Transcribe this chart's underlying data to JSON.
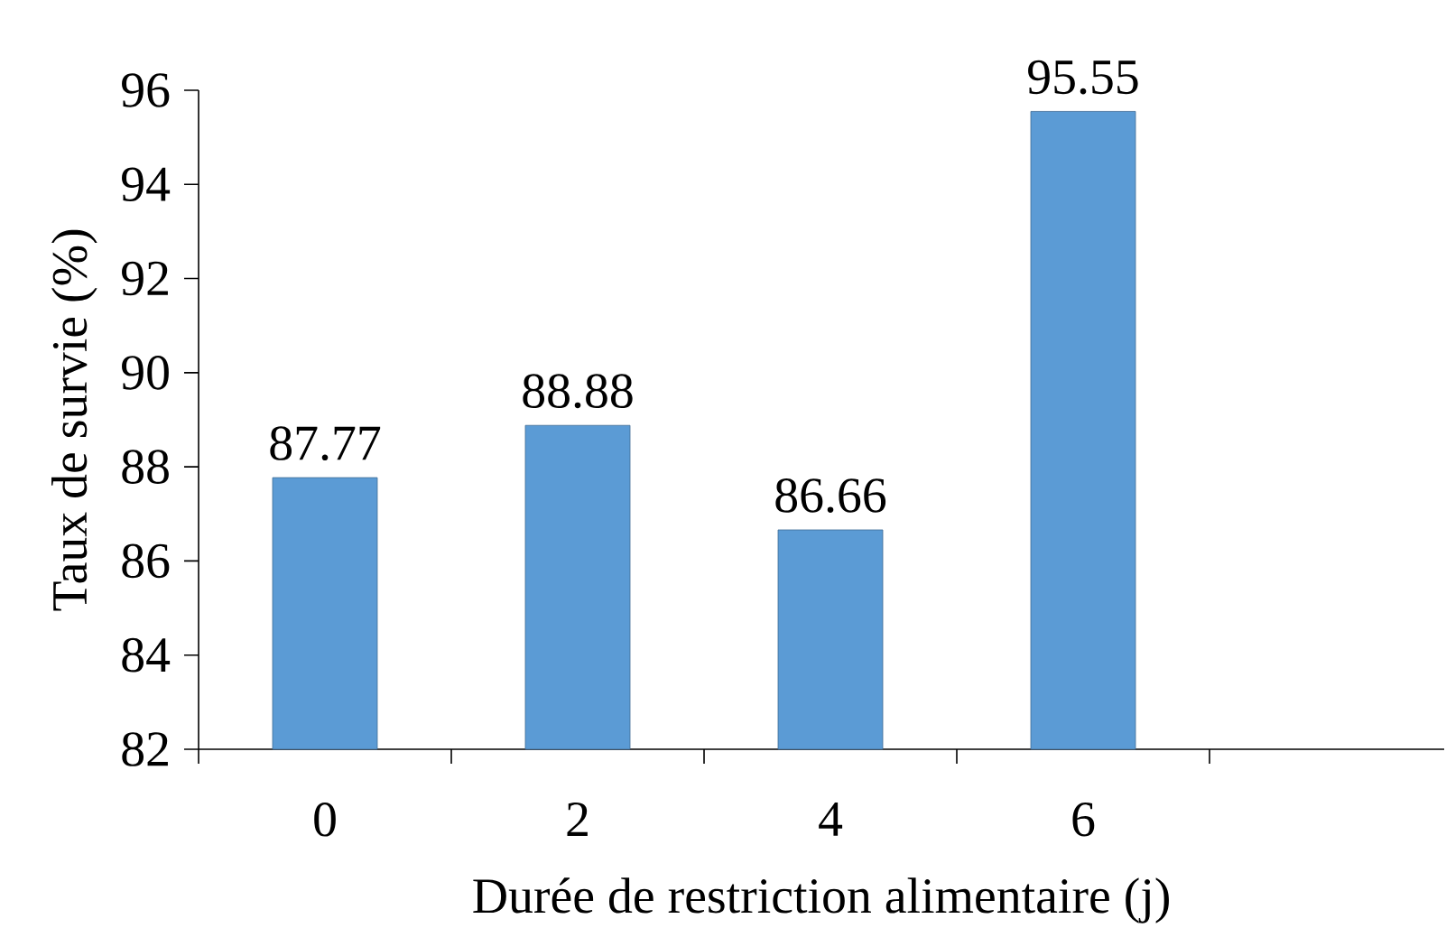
{
  "chart_data": {
    "type": "bar",
    "xlabel": "Durée de restriction alimentaire (j)",
    "ylabel": "Taux de survie (%)",
    "categories": [
      "0",
      "2",
      "4",
      "6"
    ],
    "values": [
      87.77,
      88.88,
      86.66,
      95.55
    ],
    "value_labels": [
      "87.77",
      "88.88",
      "86.66",
      "95.55"
    ],
    "color": "#5b9bd5",
    "ylim": [
      82,
      96
    ],
    "yticks": [
      82,
      84,
      86,
      88,
      90,
      92,
      94,
      96
    ]
  }
}
